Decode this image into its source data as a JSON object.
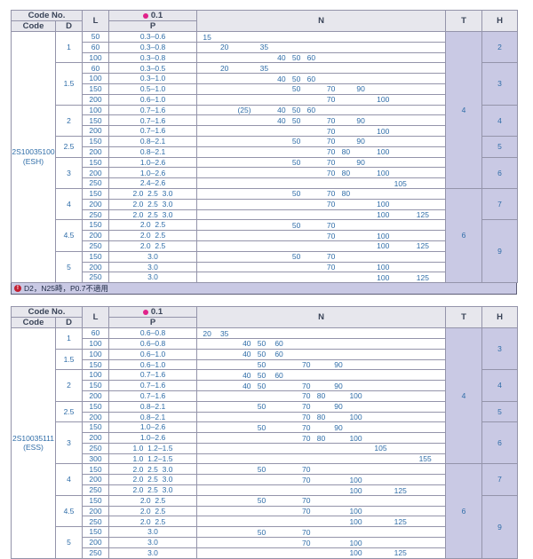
{
  "header": {
    "code_no": "Code No.",
    "code": "Code",
    "d": "D",
    "l": "L",
    "tolerance": "0.1",
    "tolerance_icon": "magenta-dot-icon",
    "p": "P",
    "n": "N",
    "t": "T",
    "h": "H"
  },
  "colors": {
    "lavender_fill": "#c9c9e4",
    "header_bg": "#e7e7ed",
    "data_text_blue": "#2f6da8",
    "tolerance_dot": "#e0218a",
    "note_icon_red": "#c32032",
    "grid_border": "#9494aa"
  },
  "note": {
    "icon": "alert-circle-icon",
    "icon_glyph": "!",
    "text": "D2，N25時，P0.7不適用"
  },
  "tables": [
    {
      "id": "esh",
      "code": "2S10035100",
      "code_label": "(ESH)",
      "has_note": true,
      "n_slots": {
        "15": 4,
        "20": 11,
        "(25)": 19,
        "35": 27,
        "40": 34,
        "50": 40,
        "60": 46,
        "70": 54,
        "80": 60,
        "90": 66,
        "100": 75,
        "105": 82,
        "125": 91
      },
      "t_groups": [
        {
          "t": "4",
          "rows": 15
        },
        {
          "t": "6",
          "rows": 9
        }
      ],
      "h_groups": [
        {
          "h": "2",
          "rows": 3
        },
        {
          "h": "3",
          "rows": 4
        },
        {
          "h": "4",
          "rows": 3
        },
        {
          "h": "5",
          "rows": 2
        },
        {
          "h": "6",
          "rows": 3
        },
        {
          "h": "7",
          "rows": 3
        },
        {
          "h": "9",
          "rows": 6
        }
      ],
      "d_groups": [
        {
          "d": "1",
          "rows": [
            {
              "l": "50",
              "p": "0.3–0.6",
              "n": [
                "15"
              ]
            },
            {
              "l": "60",
              "p": "0.3–0.8",
              "n": [
                "20",
                "35"
              ]
            },
            {
              "l": "100",
              "p": "0.3–0.8",
              "n": [
                "40",
                "50",
                "60"
              ]
            }
          ]
        },
        {
          "d": "1.5",
          "rows": [
            {
              "l": "60",
              "p": "0.3–0.5",
              "n": [
                "20",
                "35"
              ]
            },
            {
              "l": "100",
              "p": "0.3–1.0",
              "n": [
                "40",
                "50",
                "60"
              ]
            },
            {
              "l": "150",
              "p": "0.5–1.0",
              "n": [
                "50",
                "70",
                "90"
              ]
            },
            {
              "l": "200",
              "p": "0.6–1.0",
              "n": [
                "70",
                "100"
              ]
            }
          ]
        },
        {
          "d": "2",
          "rows": [
            {
              "l": "100",
              "p": "0.7–1.6",
              "n": [
                "(25)",
                "40",
                "50",
                "60"
              ]
            },
            {
              "l": "150",
              "p": "0.7–1.6",
              "n": [
                "40",
                "50",
                "70",
                "90"
              ]
            },
            {
              "l": "200",
              "p": "0.7–1.6",
              "n": [
                "70",
                "100"
              ]
            }
          ]
        },
        {
          "d": "2.5",
          "rows": [
            {
              "l": "150",
              "p": "0.8–2.1",
              "n": [
                "50",
                "70",
                "90"
              ]
            },
            {
              "l": "200",
              "p": "0.8–2.1",
              "n": [
                "70",
                "80",
                "100"
              ]
            }
          ]
        },
        {
          "d": "3",
          "rows": [
            {
              "l": "150",
              "p": "1.0–2.6",
              "n": [
                "50",
                "70",
                "90"
              ]
            },
            {
              "l": "200",
              "p": "1.0–2.6",
              "n": [
                "70",
                "80",
                "100"
              ]
            },
            {
              "l": "250",
              "p": "2.4–2.6",
              "n": [
                "105"
              ]
            }
          ]
        },
        {
          "d": "4",
          "rows": [
            {
              "l": "150",
              "p": "2.0  2.5  3.0",
              "n": [
                "50",
                "70",
                "80"
              ]
            },
            {
              "l": "200",
              "p": "2.0  2.5  3.0",
              "n": [
                "70",
                "100"
              ]
            },
            {
              "l": "250",
              "p": "2.0  2.5  3.0",
              "n": [
                "100",
                "125"
              ]
            }
          ]
        },
        {
          "d": "4.5",
          "rows": [
            {
              "l": "150",
              "p": "2.0  2.5",
              "n": [
                "50",
                "70"
              ]
            },
            {
              "l": "200",
              "p": "2.0  2.5",
              "n": [
                "70",
                "100"
              ]
            },
            {
              "l": "250",
              "p": "2.0  2.5",
              "n": [
                "100",
                "125"
              ]
            }
          ]
        },
        {
          "d": "5",
          "rows": [
            {
              "l": "150",
              "p": "3.0",
              "n": [
                "50",
                "70"
              ]
            },
            {
              "l": "200",
              "p": "3.0",
              "n": [
                "70",
                "100"
              ]
            },
            {
              "l": "250",
              "p": "3.0",
              "n": [
                "100",
                "125"
              ]
            }
          ]
        }
      ]
    },
    {
      "id": "ess",
      "code": "2S10035111",
      "code_label": "(ESS)",
      "has_note": false,
      "n_slots": {
        "20": 4,
        "35": 11,
        "40": 20,
        "50": 26,
        "60": 33,
        "70": 44,
        "80": 50,
        "90": 57,
        "100": 64,
        "105": 74,
        "125": 82,
        "155": 92
      },
      "t_groups": [
        {
          "t": "4",
          "rows": 13
        },
        {
          "t": "6",
          "rows": 9
        }
      ],
      "h_groups": [
        {
          "h": "3",
          "rows": 4
        },
        {
          "h": "4",
          "rows": 3
        },
        {
          "h": "5",
          "rows": 2
        },
        {
          "h": "6",
          "rows": 4
        },
        {
          "h": "7",
          "rows": 3
        },
        {
          "h": "9",
          "rows": 6
        }
      ],
      "d_groups": [
        {
          "d": "1",
          "rows": [
            {
              "l": "60",
              "p": "0.6–0.8",
              "n": [
                "20",
                "35"
              ]
            },
            {
              "l": "100",
              "p": "0.6–0.8",
              "n": [
                "40",
                "50",
                "60"
              ]
            }
          ]
        },
        {
          "d": "1.5",
          "rows": [
            {
              "l": "100",
              "p": "0.6–1.0",
              "n": [
                "40",
                "50",
                "60"
              ]
            },
            {
              "l": "150",
              "p": "0.6–1.0",
              "n": [
                "50",
                "70",
                "90"
              ]
            }
          ]
        },
        {
          "d": "2",
          "rows": [
            {
              "l": "100",
              "p": "0.7–1.6",
              "n": [
                "40",
                "50",
                "60"
              ]
            },
            {
              "l": "150",
              "p": "0.7–1.6",
              "n": [
                "40",
                "50",
                "70",
                "90"
              ]
            },
            {
              "l": "200",
              "p": "0.7–1.6",
              "n": [
                "70",
                "80",
                "100"
              ]
            }
          ]
        },
        {
          "d": "2.5",
          "rows": [
            {
              "l": "150",
              "p": "0.8–2.1",
              "n": [
                "50",
                "70",
                "90"
              ]
            },
            {
              "l": "200",
              "p": "0.8–2.1",
              "n": [
                "70",
                "80",
                "100"
              ]
            }
          ]
        },
        {
          "d": "3",
          "rows": [
            {
              "l": "150",
              "p": "1.0–2.6",
              "n": [
                "50",
                "70",
                "90"
              ]
            },
            {
              "l": "200",
              "p": "1.0–2.6",
              "n": [
                "70",
                "80",
                "100"
              ]
            },
            {
              "l": "250",
              "p": "1.0  1.2–1.5",
              "n": [
                "105"
              ]
            },
            {
              "l": "300",
              "p": "1.0  1.2–1.5",
              "n": [
                "155"
              ]
            }
          ]
        },
        {
          "d": "4",
          "rows": [
            {
              "l": "150",
              "p": "2.0  2.5  3.0",
              "n": [
                "50",
                "70"
              ]
            },
            {
              "l": "200",
              "p": "2.0  2.5  3.0",
              "n": [
                "70",
                "100"
              ]
            },
            {
              "l": "250",
              "p": "2.0  2.5  3.0",
              "n": [
                "100",
                "125"
              ]
            }
          ]
        },
        {
          "d": "4.5",
          "rows": [
            {
              "l": "150",
              "p": "2.0  2.5",
              "n": [
                "50",
                "70"
              ]
            },
            {
              "l": "200",
              "p": "2.0  2.5",
              "n": [
                "70",
                "100"
              ]
            },
            {
              "l": "250",
              "p": "2.0  2.5",
              "n": [
                "100",
                "125"
              ]
            }
          ]
        },
        {
          "d": "5",
          "rows": [
            {
              "l": "150",
              "p": "3.0",
              "n": [
                "50",
                "70"
              ]
            },
            {
              "l": "200",
              "p": "3.0",
              "n": [
                "70",
                "100"
              ]
            },
            {
              "l": "250",
              "p": "3.0",
              "n": [
                "100",
                "125"
              ]
            }
          ]
        }
      ]
    }
  ]
}
